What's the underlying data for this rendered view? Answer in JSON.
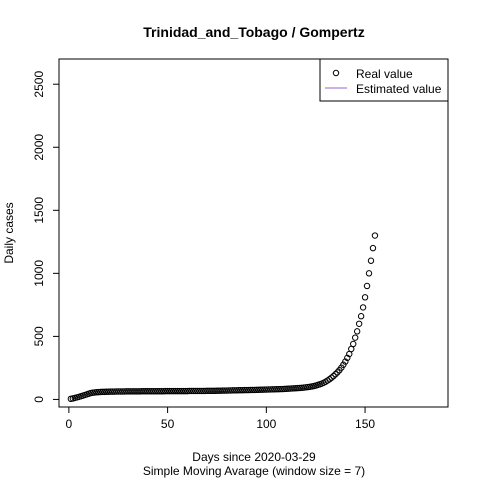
{
  "chart_data": {
    "type": "scatter",
    "title": "Trinidad_and_Tobago / Gompertz",
    "xlabel": "Days since 2020-03-29",
    "subtitle": "Simple Moving Avarage (window size = 7)",
    "ylabel": "Daily cases",
    "xlim": [
      -5,
      192
    ],
    "ylim": [
      -60,
      2700
    ],
    "x_ticks": [
      0,
      50,
      100,
      150
    ],
    "y_ticks": [
      0,
      500,
      1000,
      1500,
      2000,
      2500
    ],
    "grid": false,
    "legend": {
      "position": "top-right",
      "entries": [
        {
          "label": "Real value",
          "marker": "circle",
          "color": "#000000"
        },
        {
          "label": "Estimated value",
          "marker": "line",
          "color": "#9966cc"
        }
      ]
    },
    "series": [
      {
        "name": "Real value",
        "points": [
          [
            1,
            5
          ],
          [
            2,
            8
          ],
          [
            3,
            12
          ],
          [
            4,
            16
          ],
          [
            5,
            20
          ],
          [
            6,
            25
          ],
          [
            7,
            30
          ],
          [
            8,
            35
          ],
          [
            9,
            40
          ],
          [
            10,
            45
          ],
          [
            11,
            50
          ],
          [
            12,
            53
          ],
          [
            13,
            55
          ],
          [
            14,
            57
          ],
          [
            15,
            58
          ],
          [
            16,
            59
          ],
          [
            17,
            60
          ],
          [
            18,
            60
          ],
          [
            19,
            61
          ],
          [
            20,
            61
          ],
          [
            21,
            62
          ],
          [
            22,
            62
          ],
          [
            23,
            62
          ],
          [
            24,
            63
          ],
          [
            25,
            63
          ],
          [
            26,
            63
          ],
          [
            27,
            63
          ],
          [
            28,
            63
          ],
          [
            29,
            64
          ],
          [
            30,
            64
          ],
          [
            31,
            64
          ],
          [
            32,
            64
          ],
          [
            33,
            64
          ],
          [
            34,
            64
          ],
          [
            35,
            64
          ],
          [
            36,
            64
          ],
          [
            37,
            65
          ],
          [
            38,
            65
          ],
          [
            39,
            65
          ],
          [
            40,
            65
          ],
          [
            41,
            65
          ],
          [
            42,
            65
          ],
          [
            43,
            65
          ],
          [
            44,
            65
          ],
          [
            45,
            65
          ],
          [
            46,
            65
          ],
          [
            47,
            65
          ],
          [
            48,
            65
          ],
          [
            49,
            66
          ],
          [
            50,
            66
          ],
          [
            51,
            66
          ],
          [
            52,
            66
          ],
          [
            53,
            66
          ],
          [
            54,
            66
          ],
          [
            55,
            66
          ],
          [
            56,
            66
          ],
          [
            57,
            66
          ],
          [
            58,
            66
          ],
          [
            59,
            66
          ],
          [
            60,
            66
          ],
          [
            61,
            67
          ],
          [
            62,
            67
          ],
          [
            63,
            67
          ],
          [
            64,
            67
          ],
          [
            65,
            67
          ],
          [
            66,
            67
          ],
          [
            67,
            67
          ],
          [
            68,
            67
          ],
          [
            69,
            67
          ],
          [
            70,
            68
          ],
          [
            71,
            68
          ],
          [
            72,
            68
          ],
          [
            73,
            68
          ],
          [
            74,
            68
          ],
          [
            75,
            69
          ],
          [
            76,
            69
          ],
          [
            77,
            69
          ],
          [
            78,
            70
          ],
          [
            79,
            70
          ],
          [
            80,
            70
          ],
          [
            81,
            71
          ],
          [
            82,
            71
          ],
          [
            83,
            72
          ],
          [
            84,
            72
          ],
          [
            85,
            72
          ],
          [
            86,
            73
          ],
          [
            87,
            73
          ],
          [
            88,
            73
          ],
          [
            89,
            74
          ],
          [
            90,
            74
          ],
          [
            91,
            74
          ],
          [
            92,
            75
          ],
          [
            93,
            75
          ],
          [
            94,
            75
          ],
          [
            95,
            76
          ],
          [
            96,
            76
          ],
          [
            97,
            77
          ],
          [
            98,
            77
          ],
          [
            99,
            78
          ],
          [
            100,
            78
          ],
          [
            101,
            79
          ],
          [
            102,
            79
          ],
          [
            103,
            80
          ],
          [
            104,
            80
          ],
          [
            105,
            81
          ],
          [
            106,
            81
          ],
          [
            107,
            82
          ],
          [
            108,
            82
          ],
          [
            109,
            83
          ],
          [
            110,
            84
          ],
          [
            111,
            85
          ],
          [
            112,
            86
          ],
          [
            113,
            87
          ],
          [
            114,
            88
          ],
          [
            115,
            89
          ],
          [
            116,
            90
          ],
          [
            117,
            91
          ],
          [
            118,
            92
          ],
          [
            119,
            94
          ],
          [
            120,
            96
          ],
          [
            121,
            98
          ],
          [
            122,
            100
          ],
          [
            123,
            103
          ],
          [
            124,
            106
          ],
          [
            125,
            110
          ],
          [
            126,
            115
          ],
          [
            127,
            120
          ],
          [
            128,
            125
          ],
          [
            129,
            132
          ],
          [
            130,
            140
          ],
          [
            131,
            150
          ],
          [
            132,
            160
          ],
          [
            133,
            172
          ],
          [
            134,
            185
          ],
          [
            135,
            200
          ],
          [
            136,
            215
          ],
          [
            137,
            232
          ],
          [
            138,
            252
          ],
          [
            139,
            275
          ],
          [
            140,
            300
          ],
          [
            141,
            330
          ],
          [
            142,
            360
          ],
          [
            143,
            400
          ],
          [
            144,
            440
          ],
          [
            145,
            490
          ],
          [
            146,
            540
          ],
          [
            147,
            600
          ],
          [
            148,
            660
          ],
          [
            149,
            730
          ],
          [
            150,
            810
          ],
          [
            151,
            900
          ],
          [
            152,
            1000
          ],
          [
            153,
            1100
          ],
          [
            154,
            1200
          ],
          [
            155,
            1300
          ]
        ]
      },
      {
        "name": "Estimated value",
        "points": []
      }
    ]
  }
}
